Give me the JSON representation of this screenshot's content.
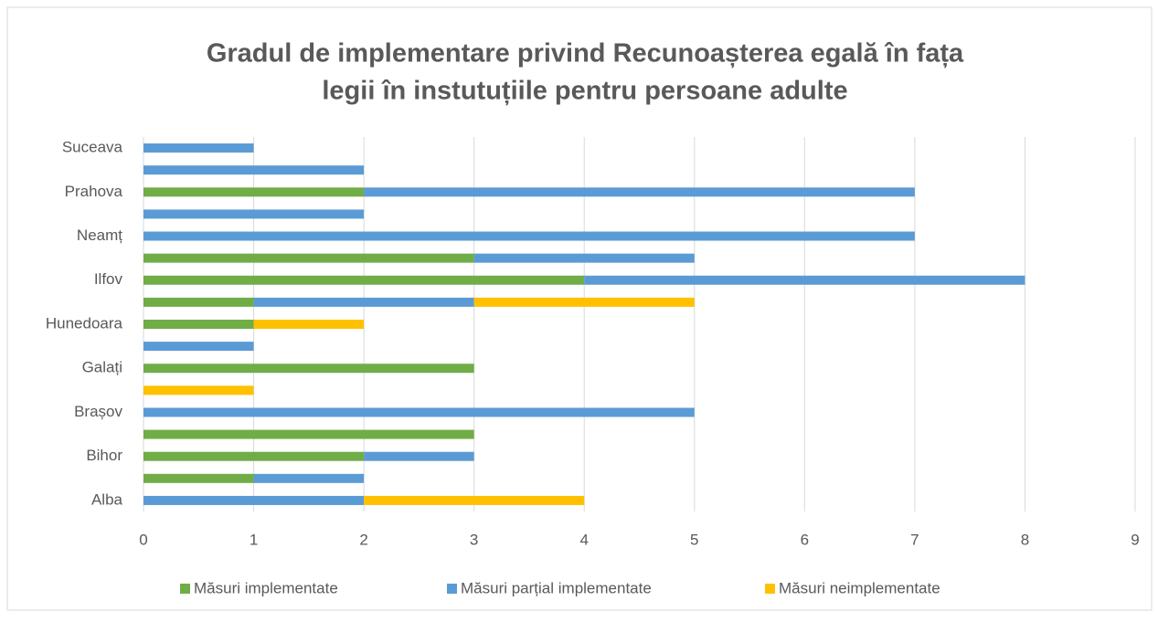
{
  "chart_data": {
    "type": "stacked_bar_horizontal",
    "title": [
      "Gradul de implementare privind Recunoașterea egală în fața",
      "legii în instutuțiile pentru persoane adulte"
    ],
    "categories": [
      "Alba",
      null,
      "Bihor",
      null,
      "Brașov",
      null,
      "Galați",
      null,
      "Hunedoara",
      null,
      "Ilfov",
      null,
      "Neamț",
      null,
      "Prahova",
      null,
      "Suceava"
    ],
    "series": [
      {
        "name": "Măsuri implementate",
        "color": "#70ad47",
        "values": [
          0,
          1,
          2,
          3,
          0,
          0,
          3,
          0,
          1,
          1,
          4,
          3,
          0,
          0,
          2,
          0,
          0
        ]
      },
      {
        "name": "Măsuri parțial implementate",
        "color": "#5b9bd5",
        "values": [
          2,
          1,
          1,
          0,
          5,
          0,
          0,
          1,
          0,
          2,
          4,
          2,
          7,
          2,
          5,
          2,
          1
        ]
      },
      {
        "name": "Măsuri neimplementate",
        "color": "#ffc000",
        "values": [
          2,
          0,
          0,
          0,
          0,
          1,
          0,
          0,
          1,
          2,
          0,
          0,
          0,
          0,
          0,
          0,
          0
        ]
      }
    ],
    "xlim": [
      0,
      9
    ],
    "xticks": [
      0,
      1,
      2,
      3,
      4,
      5,
      6,
      7,
      8,
      9
    ],
    "grid": true,
    "legend": "bottom"
  }
}
